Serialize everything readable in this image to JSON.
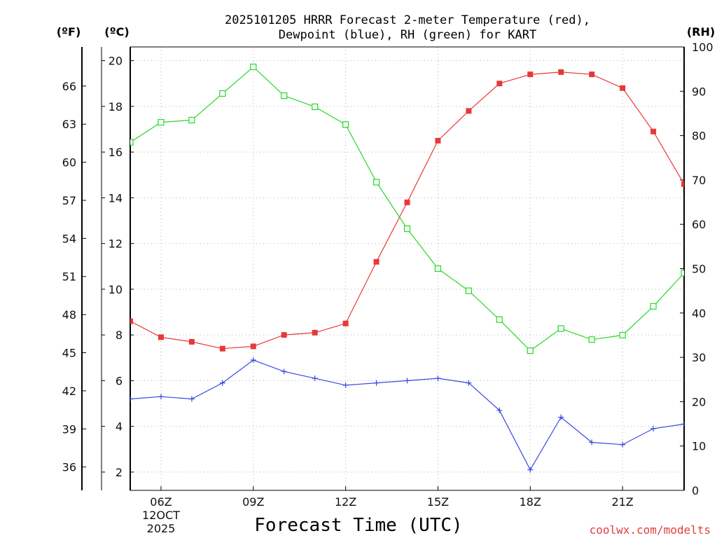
{
  "chart_data": {
    "type": "line",
    "title": [
      "2025101205 HRRR Forecast 2-meter Temperature (red),",
      "Dewpoint (blue), RH (green) for KART"
    ],
    "xlabel": "Forecast Time (UTC)",
    "date_labels": [
      "12OCT",
      "2025"
    ],
    "credit": "coolwx.com/modelts",
    "units": {
      "fahrenheit": "(ºF)",
      "celsius": "(ºC)",
      "rh": "(RH)"
    },
    "x_hours": [
      5,
      6,
      7,
      8,
      9,
      10,
      11,
      12,
      13,
      14,
      15,
      16,
      17,
      18,
      19,
      20,
      21,
      22,
      23
    ],
    "x_ticks": [
      {
        "hour": 6,
        "label": "06Z"
      },
      {
        "hour": 9,
        "label": "09Z"
      },
      {
        "hour": 12,
        "label": "12Z"
      },
      {
        "hour": 15,
        "label": "15Z"
      },
      {
        "hour": 18,
        "label": "18Z"
      },
      {
        "hour": 21,
        "label": "21Z"
      }
    ],
    "x_range": [
      5,
      23
    ],
    "celsius_range": [
      1.2,
      20.6
    ],
    "celsius_ticks": [
      2,
      4,
      6,
      8,
      10,
      12,
      14,
      16,
      18,
      20
    ],
    "fahrenheit_ticks": [
      36,
      39,
      42,
      45,
      48,
      51,
      54,
      57,
      60,
      63,
      66
    ],
    "rh_range": [
      0,
      100
    ],
    "rh_ticks": [
      0,
      10,
      20,
      30,
      40,
      50,
      60,
      70,
      80,
      90,
      100
    ],
    "grid": true,
    "series": [
      {
        "name": "Temperature",
        "axis": "celsius",
        "color": "#e83838",
        "marker": "filled-square",
        "values": [
          8.6,
          7.9,
          7.7,
          7.4,
          7.5,
          8.0,
          8.1,
          8.5,
          11.2,
          13.8,
          16.5,
          17.8,
          19.0,
          19.4,
          19.5,
          19.4,
          18.8,
          16.9,
          14.6
        ]
      },
      {
        "name": "Dewpoint",
        "axis": "celsius",
        "color": "#3848e0",
        "marker": "plus",
        "values": [
          5.2,
          5.3,
          5.2,
          5.9,
          6.9,
          6.4,
          6.1,
          5.8,
          5.9,
          6.0,
          6.1,
          5.9,
          4.7,
          2.1,
          4.4,
          3.3,
          3.2,
          3.9,
          4.1
        ]
      },
      {
        "name": "RH",
        "axis": "rh",
        "color": "#28d828",
        "marker": "open-square",
        "values": [
          78.5,
          83.0,
          83.5,
          89.5,
          95.5,
          89.0,
          86.5,
          82.5,
          69.5,
          59.0,
          50.0,
          45.0,
          38.5,
          31.5,
          36.5,
          34.0,
          35.0,
          41.5,
          49.0
        ]
      }
    ]
  }
}
